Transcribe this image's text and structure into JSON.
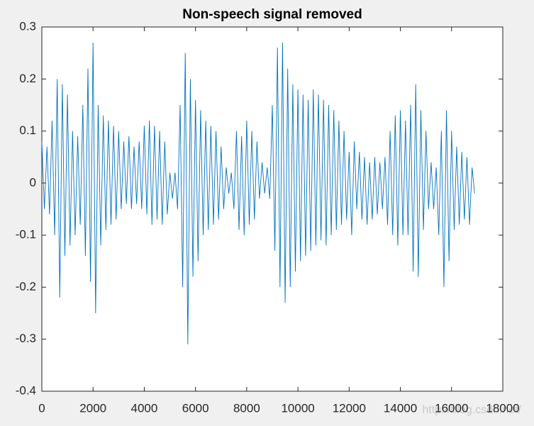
{
  "chart_data": {
    "type": "line",
    "title": "Non-speech signal removed",
    "x": [
      0,
      100,
      200,
      300,
      400,
      500,
      600,
      700,
      800,
      900,
      1000,
      1100,
      1200,
      1300,
      1400,
      1500,
      1600,
      1700,
      1800,
      1900,
      2000,
      2100,
      2200,
      2300,
      2400,
      2500,
      2600,
      2700,
      2800,
      2900,
      3000,
      3100,
      3200,
      3300,
      3400,
      3500,
      3600,
      3700,
      3800,
      3900,
      4000,
      4100,
      4200,
      4300,
      4400,
      4500,
      4600,
      4700,
      4800,
      4900,
      5000,
      5100,
      5200,
      5300,
      5400,
      5500,
      5600,
      5700,
      5800,
      5900,
      6000,
      6100,
      6200,
      6300,
      6400,
      6500,
      6600,
      6700,
      6800,
      6900,
      7000,
      7100,
      7200,
      7300,
      7400,
      7500,
      7600,
      7700,
      7800,
      7900,
      8000,
      8100,
      8200,
      8300,
      8400,
      8500,
      8600,
      8700,
      8800,
      8900,
      9000,
      9100,
      9200,
      9300,
      9400,
      9500,
      9600,
      9700,
      9800,
      9900,
      10000,
      10100,
      10200,
      10300,
      10400,
      10500,
      10600,
      10700,
      10800,
      10900,
      11000,
      11100,
      11200,
      11300,
      11400,
      11500,
      11600,
      11700,
      11800,
      11900,
      12000,
      12100,
      12200,
      12300,
      12400,
      12500,
      12600,
      12700,
      12800,
      12900,
      13000,
      13100,
      13200,
      13300,
      13400,
      13500,
      13600,
      13700,
      13800,
      13900,
      14000,
      14100,
      14200,
      14300,
      14400,
      14500,
      14600,
      14700,
      14800,
      14900,
      15000,
      15100,
      15200,
      15300,
      15400,
      15500,
      15600,
      15700,
      15800,
      15900,
      16000,
      16100,
      16200,
      16300,
      16400,
      16500,
      16600,
      16700,
      16800,
      16900
    ],
    "series": [
      {
        "color": "#0072bd",
        "values": [
          0.08,
          -0.05,
          0.07,
          -0.06,
          0.12,
          -0.1,
          0.2,
          -0.22,
          0.19,
          -0.14,
          0.17,
          -0.12,
          0.1,
          -0.1,
          0.09,
          -0.08,
          0.15,
          -0.14,
          0.22,
          -0.19,
          0.27,
          -0.25,
          0.15,
          -0.12,
          0.13,
          -0.09,
          0.12,
          -0.08,
          0.11,
          -0.07,
          0.1,
          -0.05,
          0.08,
          -0.04,
          0.09,
          -0.05,
          0.07,
          -0.04,
          0.08,
          -0.05,
          0.11,
          -0.06,
          0.12,
          -0.08,
          0.11,
          -0.07,
          0.1,
          -0.08,
          0.08,
          -0.06,
          0.02,
          -0.03,
          0.02,
          -0.05,
          0.15,
          -0.2,
          0.25,
          -0.31,
          0.2,
          -0.18,
          0.16,
          -0.15,
          0.14,
          -0.1,
          0.12,
          -0.09,
          0.11,
          -0.08,
          0.1,
          -0.07,
          0.07,
          -0.05,
          0.03,
          -0.02,
          0.02,
          -0.05,
          0.1,
          -0.09,
          0.09,
          -0.1,
          0.12,
          -0.08,
          0.1,
          -0.07,
          0.08,
          -0.03,
          0.04,
          -0.02,
          0.03,
          -0.03,
          0.15,
          -0.13,
          0.26,
          -0.2,
          0.27,
          -0.23,
          0.22,
          -0.2,
          0.19,
          -0.17,
          0.18,
          -0.15,
          0.17,
          -0.14,
          0.16,
          -0.13,
          0.18,
          -0.12,
          0.17,
          -0.11,
          0.16,
          -0.12,
          0.15,
          -0.1,
          0.14,
          -0.09,
          0.12,
          -0.08,
          0.1,
          -0.07,
          0.06,
          -0.1,
          0.08,
          -0.05,
          0.06,
          -0.07,
          0.05,
          -0.08,
          0.04,
          -0.07,
          0.05,
          -0.06,
          0.04,
          -0.05,
          0.05,
          -0.08,
          0.1,
          -0.1,
          0.13,
          -0.12,
          0.14,
          -0.1,
          0.12,
          -0.1,
          0.15,
          -0.17,
          0.19,
          -0.18,
          0.14,
          -0.09,
          0.1,
          -0.05,
          0.04,
          -0.05,
          0.03,
          -0.1,
          0.1,
          -0.2,
          0.14,
          -0.15,
          0.1,
          -0.09,
          0.07,
          -0.08,
          0.06,
          -0.07,
          0.05,
          -0.08,
          0.03,
          -0.02
        ]
      }
    ],
    "xlim": [
      0,
      18000
    ],
    "xticks": [
      0,
      2000,
      4000,
      6000,
      8000,
      10000,
      12000,
      14000,
      16000,
      18000
    ],
    "ylim": [
      -0.4,
      0.3
    ],
    "yticks": [
      -0.4,
      -0.3,
      -0.2,
      -0.1,
      0,
      0.1,
      0.2,
      0.3
    ],
    "annotation": "http://blog.csdn.net/"
  }
}
